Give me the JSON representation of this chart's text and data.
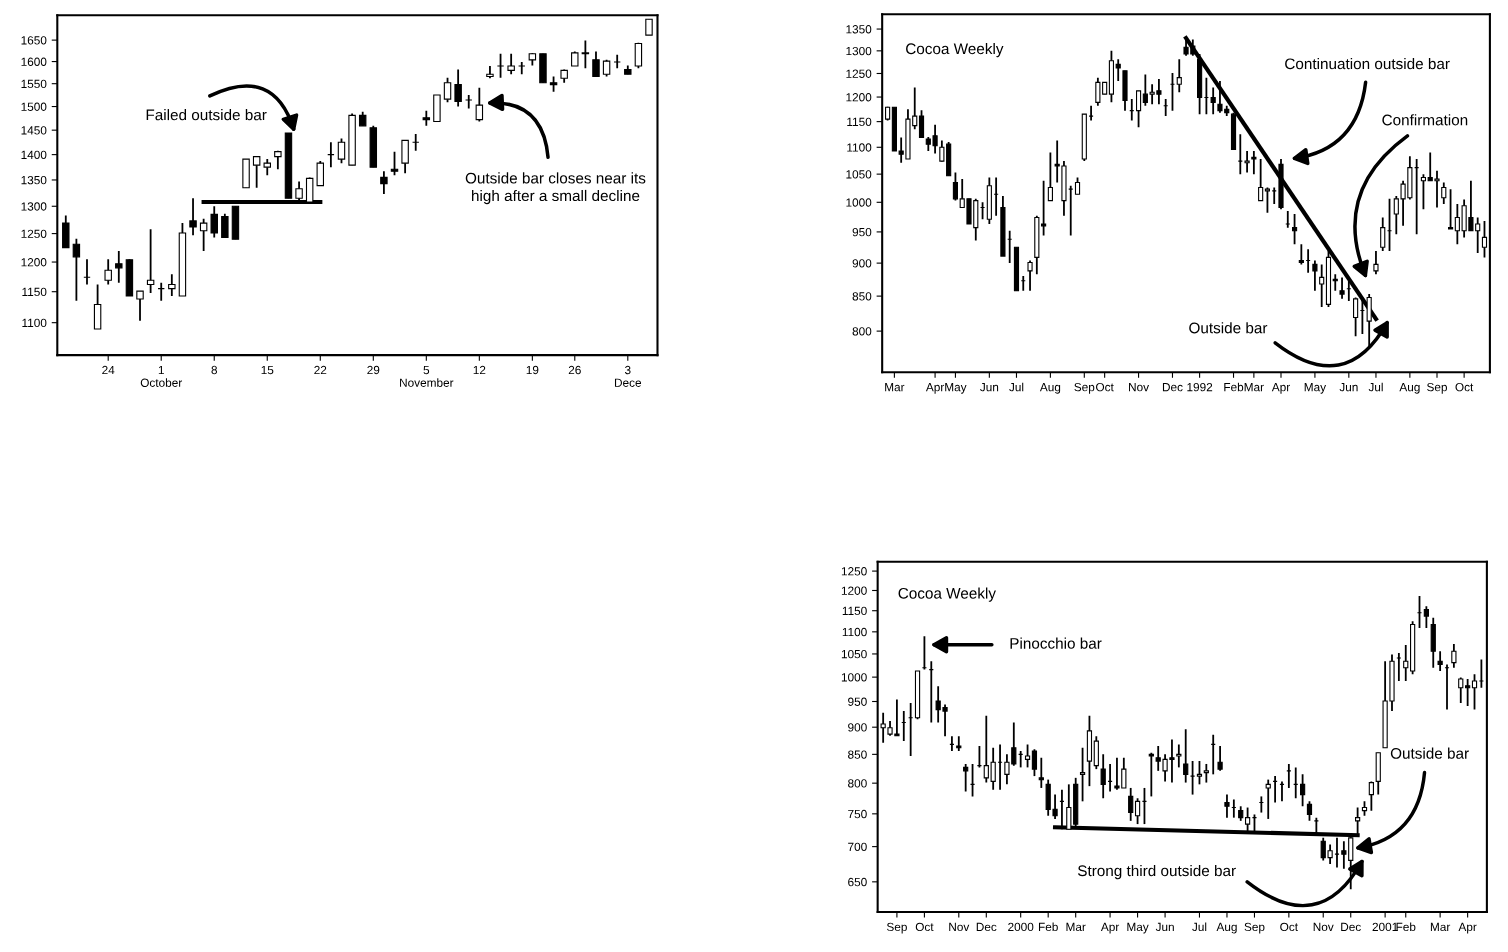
{
  "chart_data": [
    {
      "type": "candlestick",
      "log": true,
      "ylim": [
        1050,
        1710
      ],
      "yticks": [
        1100,
        1150,
        1200,
        1250,
        1300,
        1350,
        1400,
        1450,
        1500,
        1550,
        1600,
        1650
      ],
      "categories": [
        null,
        null,
        null,
        null,
        "24",
        null,
        null,
        null,
        null,
        "1\nOctober",
        null,
        null,
        null,
        null,
        "8",
        null,
        null,
        null,
        null,
        "15",
        null,
        null,
        null,
        null,
        "22",
        null,
        null,
        null,
        null,
        "29",
        null,
        null,
        null,
        null,
        "5\nNovember",
        null,
        null,
        null,
        null,
        "12",
        null,
        null,
        null,
        null,
        "19",
        null,
        null,
        null,
        "26",
        null,
        null,
        null,
        null,
        "3\nDece",
        null,
        null
      ],
      "ohlc": [
        [
          1269,
          1283,
          1225,
          1225
        ],
        [
          1231,
          1241,
          1135,
          1209
        ],
        [
          1174,
          1205,
          1162,
          1174
        ],
        [
          1090,
          1162,
          1090,
          1129
        ],
        [
          1169,
          1205,
          1162,
          1186
        ],
        [
          1197,
          1219,
          1165,
          1190
        ],
        [
          1204,
          1205,
          1143,
          1143
        ],
        [
          1138,
          1151,
          1103,
          1151
        ],
        [
          1162,
          1258,
          1148,
          1169
        ],
        [
          1155,
          1165,
          1135,
          1155
        ],
        [
          1155,
          1179,
          1143,
          1162
        ],
        [
          1143,
          1269,
          1143,
          1251
        ],
        [
          1273,
          1315,
          1247,
          1262
        ],
        [
          1255,
          1277,
          1219,
          1269
        ],
        [
          1285,
          1300,
          1243,
          1251
        ],
        [
          1281,
          1286,
          1243,
          1243
        ],
        [
          1300,
          1300,
          1240,
          1240
        ],
        [
          1335,
          1391,
          1335,
          1391
        ],
        [
          1379,
          1396,
          1335,
          1396
        ],
        [
          1375,
          1391,
          1359,
          1383
        ],
        [
          1396,
          1408,
          1371,
          1406
        ],
        [
          1444,
          1444,
          1315,
          1315
        ],
        [
          1315,
          1347,
          1308,
          1333
        ],
        [
          1308,
          1355,
          1308,
          1353
        ],
        [
          1339,
          1387,
          1339,
          1383
        ],
        [
          1400,
          1425,
          1375,
          1400
        ],
        [
          1391,
          1433,
          1383,
          1425
        ],
        [
          1379,
          1485,
          1379,
          1481
        ],
        [
          1481,
          1489,
          1459,
          1459
        ],
        [
          1455,
          1459,
          1375,
          1375
        ],
        [
          1355,
          1367,
          1323,
          1343
        ],
        [
          1371,
          1406,
          1359,
          1367
        ],
        [
          1383,
          1429,
          1363,
          1429
        ],
        [
          1425,
          1442,
          1408,
          1425
        ],
        [
          1476,
          1491,
          1459,
          1472
        ],
        [
          1468,
          1525,
          1468,
          1525
        ],
        [
          1516,
          1563,
          1509,
          1552
        ],
        [
          1548,
          1582,
          1500,
          1511
        ],
        [
          1514,
          1525,
          1496,
          1514
        ],
        [
          1472,
          1541,
          1468,
          1503
        ],
        [
          1566,
          1590,
          1562,
          1571
        ],
        [
          1590,
          1618,
          1563,
          1590
        ],
        [
          1580,
          1618,
          1571,
          1590
        ],
        [
          1590,
          1599,
          1571,
          1590
        ],
        [
          1604,
          1620,
          1591,
          1618
        ],
        [
          1618,
          1618,
          1552,
          1552
        ],
        [
          1552,
          1566,
          1532,
          1548
        ],
        [
          1562,
          1582,
          1552,
          1580
        ],
        [
          1590,
          1623,
          1590,
          1620
        ],
        [
          1620,
          1649,
          1585,
          1618
        ],
        [
          1604,
          1623,
          1566,
          1566
        ],
        [
          1571,
          1604,
          1566,
          1601
        ],
        [
          1599,
          1616,
          1585,
          1599
        ],
        [
          1582,
          1591,
          1571,
          1571
        ],
        [
          1590,
          1644,
          1585,
          1642
        ],
        [
          1662,
          1700,
          1662,
          1700
        ]
      ],
      "series": [
        {
          "type": "line",
          "color": "#000000",
          "values": [
            null,
            null,
            null,
            null,
            null,
            null,
            null,
            null,
            null,
            null,
            null,
            null,
            null,
            1308,
            null,
            null,
            null,
            null,
            null,
            null,
            null,
            null,
            null,
            null,
            1308,
            null,
            null,
            null,
            null,
            null,
            null,
            null,
            null,
            null,
            null,
            null,
            null,
            null,
            null,
            null,
            null,
            null,
            null,
            null,
            null,
            null,
            null,
            null,
            null,
            null,
            null,
            null,
            null,
            null,
            null,
            null
          ]
        }
      ],
      "annotations": [
        "Failed outside bar",
        "Outside bar closes near its\nhigh after a small decline"
      ]
    },
    {
      "type": "candlestick",
      "title": "Cocoa Weekly",
      "log": true,
      "ylim": [
        745,
        1385
      ],
      "yticks": [
        800,
        850,
        900,
        950,
        1000,
        1050,
        1100,
        1150,
        1200,
        1250,
        1300,
        1350
      ],
      "categories": [
        null,
        "Mar",
        null,
        null,
        null,
        null,
        null,
        "Apr",
        null,
        null,
        "May",
        null,
        null,
        null,
        null,
        "Jun",
        null,
        null,
        null,
        "Jul",
        null,
        null,
        null,
        null,
        "Aug",
        null,
        null,
        null,
        null,
        "Sep",
        null,
        null,
        "Oct",
        null,
        null,
        null,
        null,
        "Nov",
        null,
        null,
        null,
        null,
        "Dec",
        null,
        null,
        null,
        "1992",
        null,
        null,
        null,
        null,
        "Feb",
        null,
        null,
        "Mar",
        null,
        null,
        null,
        "Apr",
        null,
        null,
        null,
        null,
        "May",
        null,
        null,
        null,
        null,
        "Jun",
        null,
        null,
        null,
        "Jul",
        null,
        null,
        null,
        null,
        "Aug",
        null,
        null,
        null,
        "Sep",
        null,
        null,
        null,
        "Oct",
        null,
        null,
        null
      ],
      "ohlc": [
        [
          1155,
          1180,
          1152,
          1179
        ],
        [
          1179,
          1179,
          1093,
          1093
        ],
        [
          1093,
          1119,
          1071,
          1087
        ],
        [
          1078,
          1175,
          1078,
          1155
        ],
        [
          1142,
          1220,
          1135,
          1161
        ],
        [
          1161,
          1173,
          1119,
          1119
        ],
        [
          1116,
          1120,
          1093,
          1106
        ],
        [
          1122,
          1144,
          1088,
          1103
        ],
        [
          1074,
          1113,
          1073,
          1100
        ],
        [
          1106,
          1110,
          1047,
          1047
        ],
        [
          1035,
          1053,
          1003,
          1006
        ],
        [
          991,
          1041,
          991,
          1006
        ],
        [
          1006,
          1006,
          963,
          963
        ],
        [
          957,
          1006,
          936,
          1003
        ],
        [
          991,
          1000,
          971,
          991
        ],
        [
          971,
          1044,
          963,
          1029
        ],
        [
          1014,
          1044,
          977,
          1014
        ],
        [
          991,
          1011,
          911,
          911
        ],
        [
          938,
          952,
          900,
          938
        ],
        [
          925,
          925,
          858,
          858
        ],
        [
          873,
          880,
          858,
          873
        ],
        [
          888,
          904,
          858,
          901
        ],
        [
          909,
          977,
          883,
          974
        ],
        [
          963,
          1038,
          944,
          960
        ],
        [
          1003,
          1090,
          1003,
          1026
        ],
        [
          1068,
          1113,
          1035,
          1065
        ],
        [
          1003,
          1074,
          977,
          1065
        ],
        [
          1023,
          1029,
          944,
          1023
        ],
        [
          1014,
          1044,
          1014,
          1035
        ],
        [
          1078,
          1165,
          1074,
          1165
        ],
        [
          1161,
          1182,
          1152,
          1161
        ],
        [
          1189,
          1241,
          1182,
          1231
        ],
        [
          1206,
          1231,
          1206,
          1231
        ],
        [
          1206,
          1300,
          1189,
          1278
        ],
        [
          1270,
          1281,
          1234,
          1262
        ],
        [
          1256,
          1256,
          1172,
          1193
        ],
        [
          1172,
          1196,
          1152,
          1172
        ],
        [
          1172,
          1213,
          1139,
          1213
        ],
        [
          1206,
          1248,
          1182,
          1189
        ],
        [
          1206,
          1227,
          1185,
          1210
        ],
        [
          1213,
          1238,
          1185,
          1206
        ],
        [
          1182,
          1196,
          1161,
          1182
        ],
        [
          1227,
          1251,
          1172,
          1227
        ],
        [
          1227,
          1281,
          1210,
          1241
        ],
        [
          1308,
          1330,
          1289,
          1293
        ],
        [
          1311,
          1326,
          1289,
          1293
        ],
        [
          1281,
          1293,
          1165,
          1199
        ],
        [
          1199,
          1241,
          1165,
          1199
        ],
        [
          1199,
          1220,
          1165,
          1189
        ],
        [
          1185,
          1234,
          1168,
          1172
        ],
        [
          1175,
          1182,
          1161,
          1168
        ],
        [
          1165,
          1168,
          1096,
          1096
        ],
        [
          1074,
          1125,
          1050,
          1074
        ],
        [
          1071,
          1093,
          1053,
          1074
        ],
        [
          1081,
          1093,
          1050,
          1078
        ],
        [
          1003,
          1078,
          1003,
          1026
        ],
        [
          1020,
          1026,
          982,
          1023
        ],
        [
          1020,
          1026,
          997,
          1020
        ],
        [
          1068,
          1078,
          988,
          991
        ],
        [
          963,
          985,
          957,
          963
        ],
        [
          957,
          980,
          930,
          952
        ],
        [
          904,
          930,
          898,
          901
        ],
        [
          904,
          922,
          885,
          904
        ],
        [
          898,
          904,
          858,
          888
        ],
        [
          868,
          898,
          834,
          878
        ],
        [
          838,
          919,
          834,
          909
        ],
        [
          875,
          883,
          858,
          873
        ],
        [
          858,
          878,
          846,
          853
        ],
        [
          861,
          873,
          843,
          861
        ],
        [
          819,
          848,
          793,
          846
        ],
        [
          829,
          848,
          796,
          829
        ],
        [
          814,
          853,
          777,
          848
        ],
        [
          888,
          919,
          883,
          898
        ],
        [
          925,
          974,
          919,
          957
        ],
        [
          952,
          1006,
          919,
          952
        ],
        [
          980,
          1011,
          946,
          1006
        ],
        [
          1006,
          1038,
          960,
          1032
        ],
        [
          1008,
          1083,
          1005,
          1062
        ],
        [
          1062,
          1078,
          946,
          1062
        ],
        [
          1038,
          1050,
          988,
          1044
        ],
        [
          1044,
          1090,
          1038,
          1038
        ],
        [
          1038,
          1056,
          991,
          1041
        ],
        [
          1008,
          1035,
          997,
          1026
        ],
        [
          955,
          1023,
          955,
          957
        ],
        [
          952,
          997,
          930,
          974
        ],
        [
          952,
          1005,
          941,
          994
        ],
        [
          974,
          1038,
          952,
          952
        ],
        [
          952,
          974,
          916,
          963
        ],
        [
          925,
          968,
          909,
          941
        ]
      ],
      "series": [
        {
          "type": "line",
          "color": "#000000",
          "values": [
            null,
            null,
            null,
            null,
            null,
            null,
            null,
            null,
            null,
            null,
            null,
            null,
            null,
            null,
            null,
            null,
            null,
            null,
            null,
            null,
            null,
            null,
            null,
            null,
            null,
            null,
            null,
            null,
            null,
            null,
            null,
            null,
            null,
            null,
            null,
            null,
            null,
            null,
            null,
            null,
            null,
            null,
            null,
            null,
            1329,
            null,
            null,
            null,
            null,
            null,
            null,
            null,
            null,
            null,
            null,
            null,
            null,
            null,
            null,
            null,
            null,
            null,
            null,
            null,
            null,
            null,
            null,
            null,
            null,
            null,
            null,
            null,
            817,
            null,
            null,
            null,
            null,
            null,
            null,
            null,
            null,
            null,
            null,
            null,
            null,
            null,
            null,
            null,
            null
          ]
        }
      ],
      "annotations": [
        "Continuation outside bar",
        "Confirmation",
        "Outside bar"
      ]
    },
    {
      "type": "candlestick",
      "title": "Cocoa Weekly",
      "log": true,
      "ylim": [
        610,
        1275
      ],
      "yticks": [
        650,
        700,
        750,
        800,
        850,
        900,
        950,
        1000,
        1050,
        1100,
        1150,
        1200,
        1250
      ],
      "categories": [
        null,
        null,
        "Sep",
        null,
        null,
        null,
        "Oct",
        null,
        null,
        null,
        null,
        "Nov",
        null,
        null,
        null,
        "Dec",
        null,
        null,
        null,
        null,
        "2000",
        null,
        null,
        null,
        "Feb",
        null,
        null,
        null,
        "Mar",
        null,
        null,
        null,
        null,
        "Apr",
        null,
        null,
        null,
        "May",
        null,
        null,
        null,
        "Jun",
        null,
        null,
        null,
        null,
        "Jul",
        null,
        null,
        null,
        "Aug",
        null,
        null,
        null,
        "Sep",
        null,
        null,
        null,
        null,
        "Oct",
        null,
        null,
        null,
        null,
        "Nov",
        null,
        null,
        null,
        "Dec",
        null,
        null,
        null,
        null,
        "2001",
        null,
        null,
        "Feb",
        null,
        null,
        null,
        null,
        "Mar",
        null,
        null,
        null,
        "Apr",
        null,
        null
      ],
      "ohlc": [
        [
          899,
          928,
          871,
          906
        ],
        [
          887,
          912,
          884,
          899
        ],
        [
          887,
          954,
          884,
          884
        ],
        [
          909,
          931,
          874,
          909
        ],
        [
          918,
          947,
          847,
          918
        ],
        [
          918,
          1013,
          915,
          1013
        ],
        [
          1020,
          1090,
          1016,
          1020
        ],
        [
          1016,
          1034,
          909,
          1016
        ],
        [
          951,
          981,
          909,
          934
        ],
        [
          938,
          944,
          883,
          931
        ],
        [
          868,
          883,
          856,
          868
        ],
        [
          865,
          883,
          856,
          862
        ],
        [
          827,
          833,
          786,
          821
        ],
        [
          798,
          833,
          778,
          798
        ],
        [
          830,
          865,
          827,
          830
        ],
        [
          809,
          922,
          801,
          830
        ],
        [
          803,
          862,
          789,
          836
        ],
        [
          836,
          868,
          789,
          836
        ],
        [
          815,
          850,
          798,
          836
        ],
        [
          862,
          909,
          830,
          833
        ],
        [
          850,
          856,
          827,
          850
        ],
        [
          841,
          868,
          827,
          847
        ],
        [
          856,
          859,
          812,
          824
        ],
        [
          809,
          844,
          792,
          806
        ],
        [
          798,
          806,
          747,
          757
        ],
        [
          757,
          781,
          742,
          747
        ],
        [
          770,
          789,
          726,
          770
        ],
        [
          726,
          798,
          726,
          760
        ],
        [
          798,
          809,
          729,
          734
        ],
        [
          815,
          862,
          770,
          818
        ],
        [
          838,
          922,
          795,
          893
        ],
        [
          830,
          883,
          824,
          874
        ],
        [
          824,
          850,
          775,
          798
        ],
        [
          803,
          833,
          786,
          803
        ],
        [
          795,
          844,
          789,
          792
        ],
        [
          792,
          844,
          792,
          824
        ],
        [
          778,
          792,
          739,
          752
        ],
        [
          747,
          775,
          734,
          770
        ],
        [
          770,
          792,
          734,
          770
        ],
        [
          850,
          853,
          778,
          847
        ],
        [
          844,
          865,
          821,
          838
        ],
        [
          821,
          850,
          803,
          841
        ],
        [
          844,
          877,
          801,
          841
        ],
        [
          847,
          868,
          827,
          850
        ],
        [
          833,
          896,
          801,
          815
        ],
        [
          812,
          838,
          781,
          812
        ],
        [
          812,
          838,
          798,
          815
        ],
        [
          818,
          833,
          801,
          821
        ],
        [
          868,
          886,
          815,
          868
        ],
        [
          836,
          865,
          821,
          824
        ],
        [
          768,
          781,
          744,
          762
        ],
        [
          760,
          773,
          744,
          760
        ],
        [
          755,
          762,
          739,
          744
        ],
        [
          734,
          760,
          723,
          744
        ],
        [
          744,
          749,
          723,
          744
        ],
        [
          768,
          778,
          752,
          768
        ],
        [
          792,
          806,
          742,
          798
        ],
        [
          803,
          812,
          768,
          803
        ],
        [
          798,
          803,
          770,
          798
        ],
        [
          821,
          833,
          792,
          821
        ],
        [
          798,
          827,
          775,
          798
        ],
        [
          798,
          815,
          762,
          781
        ],
        [
          765,
          770,
          739,
          749
        ],
        [
          739,
          744,
          718,
          739
        ],
        [
          708,
          713,
          680,
          684
        ],
        [
          684,
          703,
          675,
          694
        ],
        [
          689,
          713,
          670,
          689
        ],
        [
          694,
          708,
          668,
          689
        ],
        [
          680,
          718,
          640,
          713
        ],
        [
          739,
          760,
          718,
          744
        ],
        [
          755,
          770,
          747,
          760
        ],
        [
          781,
          803,
          755,
          801
        ],
        [
          803,
          853,
          781,
          853
        ],
        [
          862,
          1034,
          862,
          951
        ],
        [
          951,
          1049,
          931,
          1034
        ],
        [
          1041,
          1052,
          992,
          1041
        ],
        [
          1020,
          1070,
          992,
          1034
        ],
        [
          1013,
          1125,
          1006,
          1117
        ],
        [
          1145,
          1186,
          1109,
          1145
        ],
        [
          1153,
          1161,
          1109,
          1137
        ],
        [
          1117,
          1133,
          1020,
          1056
        ],
        [
          1034,
          1056,
          1013,
          1027
        ],
        [
          1020,
          1027,
          934,
          1020
        ],
        [
          1031,
          1072,
          1020,
          1056
        ],
        [
          978,
          999,
          947,
          996
        ],
        [
          982,
          996,
          941,
          978
        ],
        [
          978,
          1006,
          934,
          992
        ],
        [
          992,
          1038,
          978,
          992
        ]
      ],
      "series": [
        {
          "type": "line",
          "color": "#000000",
          "values": [
            null,
            null,
            null,
            null,
            null,
            null,
            null,
            null,
            null,
            null,
            null,
            null,
            null,
            null,
            null,
            null,
            null,
            null,
            null,
            null,
            null,
            null,
            null,
            null,
            null,
            729,
            null,
            null,
            null,
            null,
            null,
            null,
            null,
            null,
            null,
            null,
            null,
            null,
            null,
            null,
            null,
            null,
            null,
            null,
            null,
            null,
            null,
            null,
            null,
            null,
            null,
            null,
            null,
            null,
            null,
            null,
            null,
            null,
            null,
            null,
            null,
            null,
            null,
            null,
            null,
            null,
            null,
            null,
            null,
            717,
            null,
            null,
            null,
            null,
            null,
            null,
            null,
            null,
            null,
            null,
            null,
            null,
            null,
            null,
            null,
            null,
            null,
            null
          ]
        }
      ],
      "annotations": [
        "Pinocchio bar",
        "Outside bar",
        "Strong third outside bar"
      ]
    }
  ]
}
